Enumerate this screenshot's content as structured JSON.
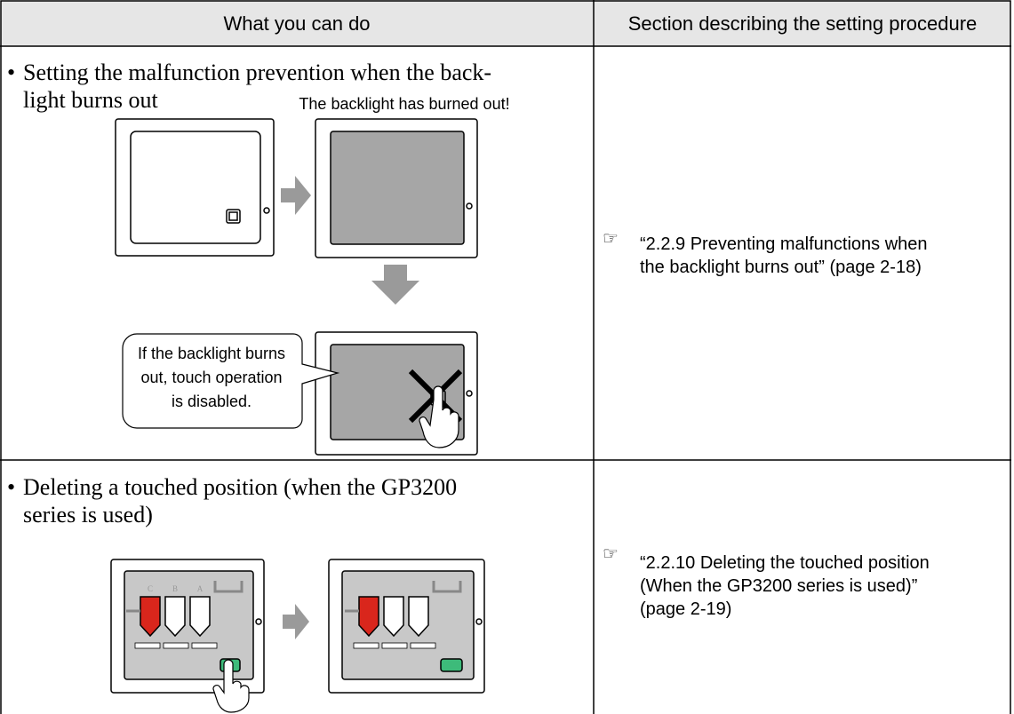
{
  "header": {
    "col1": "What you can do",
    "col2": "Section describing the setting procedure"
  },
  "rows": [
    {
      "what": [
        "Setting the malfunction prevention when the back-",
        "light burns out"
      ],
      "illustration": {
        "caption": "The backlight has burned out!",
        "callout": [
          "If the backlight burns",
          "out, touch operation",
          "is disabled."
        ]
      },
      "section": [
        "“2.2.9 Preventing malfunctions when",
        "the backlight burns out” (page 2-18)"
      ]
    },
    {
      "what": [
        "Deleting a touched position (when the GP3200",
        "series is used)"
      ],
      "illustration": {
        "labels": [
          "C",
          "B",
          "A"
        ]
      },
      "section": [
        "“2.2.10 Deleting the touched position",
        "(When the GP3200 series is used)”",
        "(page 2-19)"
      ]
    }
  ]
}
